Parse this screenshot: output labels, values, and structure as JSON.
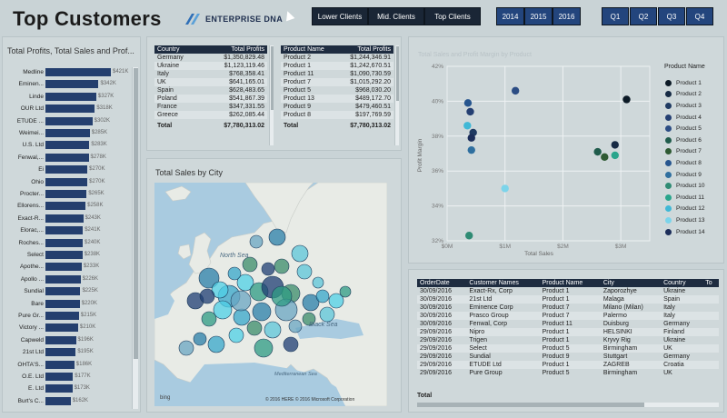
{
  "header": {
    "title": "Top Customers",
    "logo_text": "ENTERPRISE DNA",
    "client_buttons": [
      "Lower Clients",
      "Mid. Clients",
      "Top Clients"
    ],
    "year_buttons": [
      "2014",
      "2015",
      "2016"
    ],
    "quarter_buttons": [
      "Q1",
      "Q2",
      "Q3",
      "Q4"
    ]
  },
  "left_panel": {
    "title": "Total Profits, Total Sales and Prof...",
    "rows": [
      {
        "name": "Medline",
        "value": "$421K",
        "v": 421
      },
      {
        "name": "Eminen...",
        "value": "$342K",
        "v": 342
      },
      {
        "name": "Linde",
        "value": "$327K",
        "v": 327
      },
      {
        "name": "OUR Ltd",
        "value": "$318K",
        "v": 318
      },
      {
        "name": "ETUDE ...",
        "value": "$302K",
        "v": 302
      },
      {
        "name": "Weimei...",
        "value": "$285K",
        "v": 285
      },
      {
        "name": "U.S. Ltd",
        "value": "$283K",
        "v": 283
      },
      {
        "name": "Fenwal,...",
        "value": "$278K",
        "v": 278
      },
      {
        "name": "Ei",
        "value": "$270K",
        "v": 270
      },
      {
        "name": "Ohio",
        "value": "$270K",
        "v": 270
      },
      {
        "name": "Procter...",
        "value": "$265K",
        "v": 265
      },
      {
        "name": "Ellorens...",
        "value": "$258K",
        "v": 258
      },
      {
        "name": "Exact-R...",
        "value": "$243K",
        "v": 243
      },
      {
        "name": "Elorac,...",
        "value": "$241K",
        "v": 241
      },
      {
        "name": "Roches...",
        "value": "$240K",
        "v": 240
      },
      {
        "name": "Select",
        "value": "$238K",
        "v": 238
      },
      {
        "name": "Apothe...",
        "value": "$233K",
        "v": 233
      },
      {
        "name": "Apollo ...",
        "value": "$226K",
        "v": 226
      },
      {
        "name": "Sundial",
        "value": "$225K",
        "v": 225
      },
      {
        "name": "Bare",
        "value": "$220K",
        "v": 220
      },
      {
        "name": "Pure Gr...",
        "value": "$215K",
        "v": 215
      },
      {
        "name": "Victory ...",
        "value": "$210K",
        "v": 210
      },
      {
        "name": "Capweld",
        "value": "$196K",
        "v": 196
      },
      {
        "name": "21st Ltd",
        "value": "$195K",
        "v": 195
      },
      {
        "name": "OHTA'S...",
        "value": "$186K",
        "v": 186
      },
      {
        "name": "O.E. Ltd",
        "value": "$177K",
        "v": 177
      },
      {
        "name": "E. Ltd",
        "value": "$173K",
        "v": 173
      },
      {
        "name": "Burt's C...",
        "value": "$162K",
        "v": 162
      }
    ]
  },
  "country_table": {
    "headers": [
      "Country",
      "Total Profits"
    ],
    "rows": [
      [
        "Germany",
        "$1,350,829.48"
      ],
      [
        "Ukraine",
        "$1,123,119.46"
      ],
      [
        "Italy",
        "$768,358.41"
      ],
      [
        "UK",
        "$641,165.01"
      ],
      [
        "Spain",
        "$628,483.65"
      ],
      [
        "Poland",
        "$541,867.39"
      ],
      [
        "France",
        "$347,331.55"
      ],
      [
        "Greece",
        "$262,085.44"
      ]
    ],
    "total": [
      "Total",
      "$7,780,313.02"
    ]
  },
  "product_table": {
    "headers": [
      "Product Name",
      "Total Profits"
    ],
    "rows": [
      [
        "Product 2",
        "$1,244,346.91"
      ],
      [
        "Product 1",
        "$1,242,670.51"
      ],
      [
        "Product 11",
        "$1,090,730.59"
      ],
      [
        "Product 7",
        "$1,015,292.20"
      ],
      [
        "Product 5",
        "$968,030.20"
      ],
      [
        "Product 13",
        "$489,172.70"
      ],
      [
        "Product 9",
        "$479,460.51"
      ],
      [
        "Product 8",
        "$197,769.59"
      ]
    ],
    "total": [
      "Total",
      "$7,780,313.02"
    ]
  },
  "map_panel": {
    "title": "Total Sales by City",
    "labels": {
      "north_sea": "North Sea",
      "black_sea": "Black Sea",
      "med_sea": "Mediterranean Sea"
    },
    "attribution": "© 2016 HERE   © 2016 Microsoft Corporation",
    "bing": "bing"
  },
  "chart_data": {
    "type": "scatter",
    "title": "Total Sales and Profit Margin by Product",
    "xlabel": "Total Sales",
    "ylabel": "Profit Margin",
    "xlim": [
      0,
      3.5
    ],
    "ylim": [
      32,
      42
    ],
    "x_ticks": [
      "$0M",
      "$1M",
      "$2M",
      "$3M"
    ],
    "x_tick_values": [
      0,
      1,
      2,
      3
    ],
    "y_ticks": [
      "32%",
      "34%",
      "36%",
      "38%",
      "40%",
      "42%"
    ],
    "y_tick_values": [
      32,
      34,
      36,
      38,
      40,
      42
    ],
    "legend_title": "Product Name",
    "series": [
      {
        "name": "Product 1",
        "color": "#0c1a26",
        "points": [
          [
            3.1,
            40.1
          ]
        ]
      },
      {
        "name": "Product 2",
        "color": "#162a44",
        "points": [
          [
            2.9,
            37.5
          ]
        ]
      },
      {
        "name": "Product 3",
        "color": "#1f3a62",
        "points": [
          [
            0.45,
            38.2
          ]
        ]
      },
      {
        "name": "Product 4",
        "color": "#243f72",
        "points": [
          [
            0.4,
            39.4
          ]
        ]
      },
      {
        "name": "Product 5",
        "color": "#2c4d84",
        "points": [
          [
            1.18,
            40.6
          ]
        ]
      },
      {
        "name": "Product 6",
        "color": "#205c4c",
        "points": [
          [
            2.6,
            37.1
          ]
        ]
      },
      {
        "name": "Product 7",
        "color": "#2e5a33",
        "points": [
          [
            2.72,
            36.8
          ]
        ]
      },
      {
        "name": "Product 8",
        "color": "#27568f",
        "points": [
          [
            0.36,
            39.9
          ]
        ]
      },
      {
        "name": "Product 9",
        "color": "#2f6f9f",
        "points": [
          [
            0.42,
            37.2
          ]
        ]
      },
      {
        "name": "Product 10",
        "color": "#2f8b74",
        "points": [
          [
            0.38,
            32.3
          ]
        ]
      },
      {
        "name": "Product 11",
        "color": "#29a58c",
        "points": [
          [
            2.9,
            36.9
          ]
        ]
      },
      {
        "name": "Product 12",
        "color": "#40b8d6",
        "points": [
          [
            0.35,
            38.6
          ]
        ]
      },
      {
        "name": "Product 13",
        "color": "#7cd4ea",
        "points": [
          [
            1.0,
            35.0
          ]
        ]
      },
      {
        "name": "Product 14",
        "color": "#1c2e5a",
        "points": [
          [
            0.42,
            37.9
          ]
        ]
      }
    ]
  },
  "order_table": {
    "headers": [
      "OrderDate",
      "Customer Names",
      "Product Name",
      "City",
      "Country",
      "To"
    ],
    "rows": [
      [
        "30/09/2016",
        "Exact-Rx, Corp",
        "Product 1",
        "Zaporozhye",
        "Ukraine"
      ],
      [
        "30/09/2016",
        "21st Ltd",
        "Product 1",
        "Malaga",
        "Spain"
      ],
      [
        "30/09/2016",
        "Eminence Corp",
        "Product 7",
        "Milano (Milan)",
        "Italy"
      ],
      [
        "30/09/2016",
        "Prasco Group",
        "Product 7",
        "Palermo",
        "Italy"
      ],
      [
        "30/09/2016",
        "Fenwal, Corp",
        "Product 11",
        "Duisburg",
        "Germany"
      ],
      [
        "29/09/2016",
        "Nipro",
        "Product 1",
        "HELSINKI",
        "Finland"
      ],
      [
        "29/09/2016",
        "Trigen",
        "Product 1",
        "Kryvy Rig",
        "Ukraine"
      ],
      [
        "29/09/2016",
        "Select",
        "Product 5",
        "Birmingham",
        "UK"
      ],
      [
        "29/09/2016",
        "Sundial",
        "Product 9",
        "Stuttgart",
        "Germany"
      ],
      [
        "29/09/2016",
        "ETUDE Ltd",
        "Product 1",
        "ZAGREB",
        "Croatia"
      ],
      [
        "29/09/2016",
        "Pure Group",
        "Product 5",
        "Birmingham",
        "UK"
      ]
    ],
    "total": "Total"
  }
}
